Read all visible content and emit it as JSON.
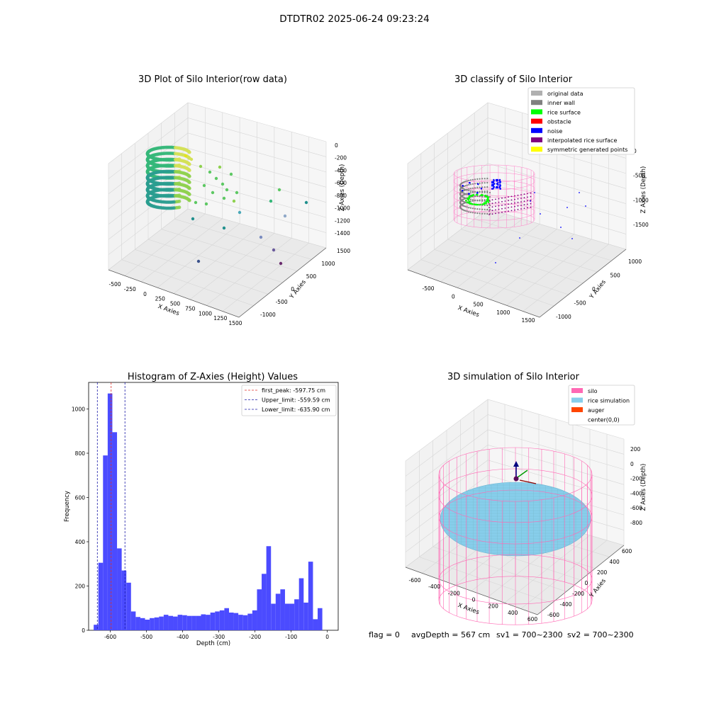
{
  "figure": {
    "suptitle": "DTDTR02 2025-06-24 09:23:24",
    "status_line": {
      "flag": "flag = 0",
      "avg_depth": "avgDepth = 567 cm",
      "sv1": "sv1 = 700~2300",
      "sv2": "sv2 = 700~2300"
    }
  },
  "colors": {
    "hist_bar": "#4b4bff",
    "first_peak": "#e0302a",
    "limits": "#1c1ca8",
    "silo": "#ff69b4",
    "rice_sim": "#87ceeb",
    "auger": "#ff4500",
    "inner_wall": "#808080",
    "rice_surface": "#00ff00",
    "obstacle": "#ff0000",
    "noise": "#0000ff",
    "interpolated": "#800080",
    "symmetric": "#ffff00",
    "original": "#b0b0b0"
  },
  "chart_data": [
    {
      "type": "scatter",
      "title": "3D Plot of Silo Interior(row data)",
      "xlabel": "X Axies",
      "ylabel": "Y Axies",
      "zlabel": "Z Axies (Depth)",
      "x_ticks": [
        "-500",
        "-250",
        "0",
        "250",
        "500",
        "750",
        "1000",
        "1250",
        "1500"
      ],
      "y_ticks": [
        "-1000",
        "-500",
        "0",
        "500",
        "1000",
        "1500"
      ],
      "z_ticks": [
        "0",
        "-200",
        "-400",
        "-600",
        "-800",
        "-1000",
        "-1200",
        "-1400"
      ],
      "colormap": "viridis"
    },
    {
      "type": "scatter",
      "title": "3D classify of Silo Interior",
      "xlabel": "X Axies",
      "ylabel": "Y Axies",
      "zlabel": "Z Axies (Depth)",
      "x_ticks": [
        "-500",
        "0",
        "500",
        "1000",
        "1500"
      ],
      "y_ticks": [
        "-1000",
        "-500",
        "0",
        "500",
        "1000"
      ],
      "z_ticks": [
        "0",
        "-500",
        "-1000",
        "-1500"
      ],
      "legend_position": "top-right",
      "legend": [
        {
          "label": "original data",
          "color": "#b0b0b0"
        },
        {
          "label": "inner wall",
          "color": "#808080"
        },
        {
          "label": "rice surface",
          "color": "#00ff00"
        },
        {
          "label": "obstacle",
          "color": "#ff0000"
        },
        {
          "label": "noise",
          "color": "#0000ff"
        },
        {
          "label": "interpolated rice surface",
          "color": "#800080"
        },
        {
          "label": "symmetric generated points",
          "color": "#ffff00"
        }
      ]
    },
    {
      "type": "bar",
      "title": "Histogram of Z-Axies (Height) Values",
      "xlabel": "Depth (cm)",
      "ylabel": "Frequency",
      "xlim": [
        -660,
        30
      ],
      "ylim": [
        0,
        1120
      ],
      "x_ticks": [
        -600,
        -500,
        -400,
        -300,
        -200,
        -100,
        0
      ],
      "y_ticks": [
        0,
        200,
        400,
        600,
        800,
        1000
      ],
      "bin_start": -646,
      "bin_width": 12.9,
      "values": [
        25,
        305,
        790,
        1070,
        895,
        370,
        270,
        215,
        85,
        60,
        55,
        48,
        55,
        58,
        62,
        70,
        65,
        62,
        70,
        68,
        65,
        65,
        65,
        72,
        70,
        80,
        85,
        90,
        100,
        80,
        78,
        70,
        68,
        75,
        90,
        185,
        255,
        380,
        120,
        165,
        185,
        120,
        120,
        140,
        235,
        125,
        310,
        50,
        100
      ],
      "lines": [
        {
          "label": "first_peak: -597.75 cm",
          "x": -597.75,
          "color": "#e0302a"
        },
        {
          "label": "Upper_limit: -559.59 cm",
          "x": -559.59,
          "color": "#1c1ca8"
        },
        {
          "label": "Lower_limit: -635.90 cm",
          "x": -635.9,
          "color": "#1c1ca8"
        }
      ],
      "legend_position": "top-right"
    },
    {
      "type": "scatter",
      "title": "3D simulation of Silo Interior",
      "xlabel": "X Axies",
      "ylabel": "Y Axies",
      "zlabel": "Z Axies (Depth)",
      "x_ticks": [
        "-600",
        "-400",
        "-200",
        "0",
        "200",
        "400",
        "600"
      ],
      "y_ticks": [
        "-600",
        "-400",
        "-200",
        "0",
        "200",
        "400",
        "600"
      ],
      "z_ticks": [
        "200",
        "0",
        "-200",
        "-400",
        "-600",
        "-800"
      ],
      "legend_position": "top-right",
      "legend": [
        {
          "label": "silo",
          "color": "#ff69b4"
        },
        {
          "label": "rice simulation",
          "color": "#87ceeb"
        },
        {
          "label": "auger",
          "color": "#ff4500"
        },
        {
          "label": "center(0,0)",
          "color": ""
        }
      ]
    }
  ]
}
